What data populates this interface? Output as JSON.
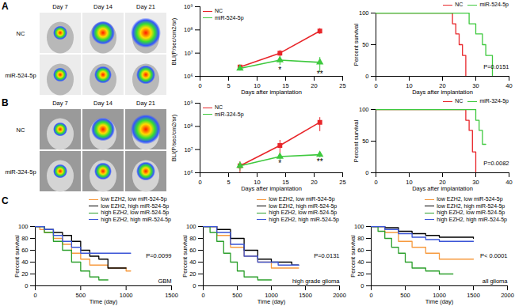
{
  "figure": {
    "panel_labels": [
      "A",
      "B",
      "C"
    ],
    "image_panels": [
      {
        "columns": [
          "Day 7",
          "Day 14",
          "Day 21"
        ],
        "rows": [
          "NC",
          "miR-524-5p"
        ]
      },
      {
        "columns": [
          "Day 7",
          "Day 14",
          "Day 21"
        ],
        "rows": [
          "NC",
          "miR-324-5p"
        ]
      }
    ]
  },
  "chart_data": [
    {
      "type": "line",
      "log": "y",
      "legend": "top-left",
      "grid": false,
      "x_label": "Days after implantation",
      "y_label": "BLI(P/sec/cm2/sr)",
      "x": [
        7,
        14,
        21
      ],
      "xlim": [
        0,
        25
      ],
      "xticks": [
        0,
        5,
        10,
        15,
        20,
        25
      ],
      "ylim": [
        1000000,
        1000000000
      ],
      "yticks": [
        {
          "value": 1000000,
          "label": "10⁶"
        },
        {
          "value": 10000000,
          "label": "10⁷"
        },
        {
          "value": 100000000,
          "label": "10⁸"
        },
        {
          "value": 1000000000,
          "label": "10⁹"
        }
      ],
      "series": [
        {
          "name": "NC",
          "color": "#e8262a",
          "marker": "square",
          "values": [
            2500000,
            10000000,
            90000000
          ],
          "errors": [
            500000,
            3000000,
            25000000
          ]
        },
        {
          "name": "miR-524-5p",
          "color": "#3ec93e",
          "marker": "triangle",
          "values": [
            2200000,
            5000000,
            4000000
          ],
          "errors": [
            500000,
            2000000,
            2500000
          ]
        }
      ],
      "annotations": [
        {
          "text": "*",
          "x": 14,
          "y": 1800000
        },
        {
          "text": "**",
          "x": 21,
          "y": 1200000
        }
      ]
    },
    {
      "type": "step",
      "legend": "top-right",
      "grid": false,
      "x_label": "Days after implantation",
      "y_label": "Percent survival",
      "xlim": [
        0,
        40
      ],
      "xticks": [
        0,
        10,
        20,
        30,
        40
      ],
      "ylim": [
        0,
        100
      ],
      "yticks": [
        0,
        50,
        100
      ],
      "series": [
        {
          "name": "NC",
          "color": "#e8262a",
          "x": [
            0,
            22,
            23,
            24,
            25,
            26,
            27
          ],
          "values": [
            100,
            100,
            83,
            67,
            50,
            33,
            0
          ]
        },
        {
          "name": "miR-524-5p",
          "color": "#3ec93e",
          "x": [
            0,
            27,
            28,
            30,
            32,
            33,
            35
          ],
          "values": [
            100,
            100,
            83,
            67,
            50,
            33,
            0
          ]
        }
      ],
      "annotations": [
        {
          "text": "P=0.0151",
          "x": 40,
          "y": 15
        }
      ]
    },
    {
      "type": "line",
      "log": "y",
      "legend": "top-left",
      "grid": false,
      "x_label": "Days after implantation",
      "y_label": "BLI(P/sec/cm2/sr)",
      "x": [
        7,
        14,
        21
      ],
      "xlim": [
        0,
        25
      ],
      "xticks": [
        0,
        5,
        10,
        15,
        20,
        25
      ],
      "ylim": [
        1000000,
        1000000000
      ],
      "yticks": [
        {
          "value": 1000000,
          "label": "10⁶"
        },
        {
          "value": 10000000,
          "label": "10⁷"
        },
        {
          "value": 100000000,
          "label": "10⁸"
        },
        {
          "value": 1000000000,
          "label": "10⁹"
        }
      ],
      "series": [
        {
          "name": "NC",
          "color": "#e8262a",
          "marker": "square",
          "values": [
            2000000,
            15000000,
            150000000
          ],
          "errors": [
            1000000,
            10000000,
            90000000
          ]
        },
        {
          "name": "miR-324-5p",
          "color": "#3ec93e",
          "marker": "triangle",
          "values": [
            2000000,
            5000000,
            6000000
          ],
          "errors": [
            800000,
            1500000,
            1500000
          ]
        }
      ],
      "annotations": [
        {
          "text": "*",
          "x": 14,
          "y": 2500000
        },
        {
          "text": "**",
          "x": 21,
          "y": 3000000
        }
      ]
    },
    {
      "type": "step",
      "legend": "top-right",
      "grid": false,
      "x_label": "Days after implantation",
      "y_label": "Percent survival",
      "xlim": [
        0,
        40
      ],
      "xticks": [
        0,
        10,
        20,
        30,
        40
      ],
      "ylim": [
        0,
        100
      ],
      "yticks": [
        0,
        50,
        100
      ],
      "series": [
        {
          "name": "NC",
          "color": "#e8262a",
          "x": [
            0,
            26,
            27,
            28,
            29,
            30
          ],
          "values": [
            100,
            100,
            83,
            67,
            33,
            0
          ]
        },
        {
          "name": "miR-324-5p",
          "color": "#3ec93e",
          "x": [
            0,
            29,
            30,
            31,
            32,
            33
          ],
          "values": [
            100,
            100,
            83,
            67,
            45,
            45
          ]
        }
      ],
      "annotations": [
        {
          "text": "P=0.0082",
          "x": 40,
          "y": 15
        }
      ]
    },
    {
      "type": "step",
      "legend": "top-right",
      "grid": false,
      "x_label": "Time (day)",
      "y_label": "Percent survival",
      "xlim": [
        0,
        1500
      ],
      "xticks": [
        0,
        500,
        1000,
        1500
      ],
      "ylim": [
        0,
        100
      ],
      "yticks": [
        0,
        20,
        40,
        60,
        80,
        100
      ],
      "series": [
        {
          "name": "low EZH2, low miR-524-5p",
          "color": "#f79a3e",
          "x": [
            0,
            50,
            100,
            200,
            300,
            400,
            500,
            600,
            800,
            1000,
            1050
          ],
          "values": [
            100,
            95,
            90,
            80,
            70,
            55,
            45,
            35,
            30,
            25,
            25
          ]
        },
        {
          "name": "low EZH2, high miR-524-5p",
          "color": "#000000",
          "x": [
            0,
            100,
            200,
            300,
            400,
            500,
            600,
            700,
            800,
            1000
          ],
          "values": [
            100,
            95,
            90,
            85,
            75,
            60,
            50,
            45,
            30,
            30
          ]
        },
        {
          "name": "high EZH2, low miR-524-5p",
          "color": "#2ca02c",
          "x": [
            0,
            100,
            200,
            300,
            400,
            500,
            600,
            700,
            800
          ],
          "values": [
            100,
            90,
            75,
            60,
            40,
            25,
            15,
            10,
            10
          ]
        },
        {
          "name": "high EZH2, high miR-524-5p",
          "color": "#3a54d6",
          "x": [
            0,
            100,
            200,
            300,
            400,
            500,
            1050
          ],
          "values": [
            100,
            95,
            85,
            75,
            65,
            55,
            55
          ]
        }
      ],
      "annotations": [
        {
          "text": "P=0.0099",
          "x": 1500,
          "y": 50
        },
        {
          "text": "GBM",
          "x": 1500,
          "y": 8
        }
      ]
    },
    {
      "type": "step",
      "legend": "top-right",
      "grid": false,
      "x_label": "Time (day)",
      "y_label": "Percent survival",
      "xlim": [
        0,
        2000
      ],
      "xticks": [
        0,
        500,
        1000,
        1500,
        2000
      ],
      "ylim": [
        0,
        100
      ],
      "yticks": [
        0,
        20,
        40,
        60,
        80,
        100
      ],
      "series": [
        {
          "name": "low EZH2, low miR-524-5p",
          "color": "#f79a3e",
          "x": [
            0,
            200,
            400,
            600,
            800,
            1000,
            1400
          ],
          "values": [
            100,
            85,
            65,
            50,
            40,
            30,
            30
          ]
        },
        {
          "name": "low EZH2, high miR-524-5p",
          "color": "#000000",
          "x": [
            0,
            200,
            400,
            600,
            800,
            1000,
            1300,
            1400
          ],
          "values": [
            100,
            95,
            80,
            60,
            45,
            40,
            35,
            35
          ]
        },
        {
          "name": "high EZH2, low miR-524-5p",
          "color": "#2ca02c",
          "x": [
            0,
            100,
            200,
            300,
            400,
            500,
            600,
            800,
            1000
          ],
          "values": [
            100,
            90,
            75,
            55,
            40,
            25,
            15,
            10,
            10
          ]
        },
        {
          "name": "high EZH2, high miR-524-5p",
          "color": "#3a54d6",
          "x": [
            0,
            200,
            400,
            600,
            800,
            1100,
            1400
          ],
          "values": [
            100,
            90,
            70,
            50,
            40,
            35,
            35
          ]
        }
      ],
      "annotations": [
        {
          "text": "P=0.0131",
          "x": 2000,
          "y": 50
        },
        {
          "text": "high grade glioma",
          "x": 2000,
          "y": 8
        }
      ]
    },
    {
      "type": "step",
      "legend": "top-right",
      "grid": false,
      "x_label": "Time (day)",
      "y_label": "Percent survival",
      "xlim": [
        0,
        2000
      ],
      "xticks": [
        0,
        500,
        1000,
        1500,
        2000
      ],
      "ylim": [
        0,
        100
      ],
      "yticks": [
        0,
        20,
        40,
        60,
        80,
        100
      ],
      "series": [
        {
          "name": "low EZH2, low miR-524-5p",
          "color": "#f79a3e",
          "x": [
            0,
            200,
            400,
            600,
            800,
            1000,
            1500
          ],
          "values": [
            100,
            90,
            75,
            65,
            55,
            45,
            45
          ]
        },
        {
          "name": "low EZH2, high miR-524-5p",
          "color": "#000000",
          "x": [
            0,
            200,
            400,
            600,
            800,
            1000,
            1500
          ],
          "values": [
            100,
            98,
            92,
            88,
            85,
            82,
            80
          ]
        },
        {
          "name": "high EZH2, low miR-524-5p",
          "color": "#2ca02c",
          "x": [
            0,
            100,
            200,
            300,
            400,
            500,
            600,
            800,
            1000,
            1200
          ],
          "values": [
            100,
            92,
            80,
            65,
            55,
            40,
            30,
            25,
            20,
            20
          ]
        },
        {
          "name": "high EZH2, high miR-524-5p",
          "color": "#3a54d6",
          "x": [
            0,
            200,
            400,
            600,
            800,
            1000,
            1500
          ],
          "values": [
            100,
            95,
            88,
            82,
            78,
            75,
            75
          ]
        }
      ],
      "annotations": [
        {
          "text": "P< 0.0001",
          "x": 2000,
          "y": 50
        },
        {
          "text": "all glioma",
          "x": 2000,
          "y": 8
        }
      ]
    }
  ]
}
